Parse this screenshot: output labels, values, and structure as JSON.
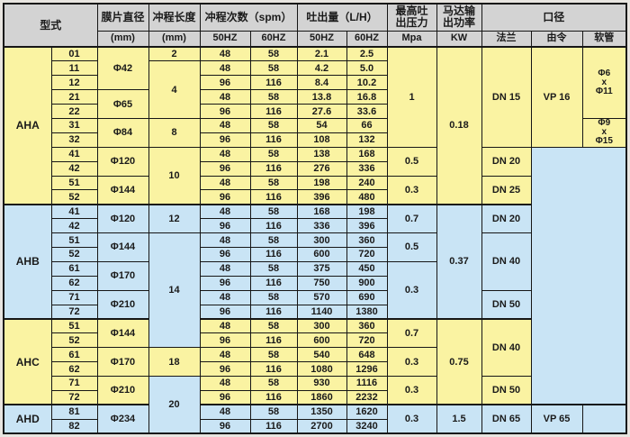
{
  "colors": {
    "yellow_row": "#FAF3A2",
    "blue_row": "#C9E4F5",
    "header_bg": "#D3D3D3",
    "border": "#161616",
    "page_bg": "#E8E5E0"
  },
  "table": {
    "header": {
      "model": "型式",
      "diaphragm": "膜片直径",
      "diaphragm_unit": "(mm)",
      "stroke": "冲程长度",
      "stroke_unit": "(mm)",
      "spm": "冲程次数（spm）",
      "spm_hz50": "50HZ",
      "spm_hz60": "60HZ",
      "flow": "吐出量（L/H）",
      "flow_hz50": "50HZ",
      "flow_hz60": "60HZ",
      "pressure": "最高吐\n出压力",
      "pressure_unit": "Mpa",
      "power": "马达输\n出功率",
      "power_unit": "KW",
      "caliber": "口径",
      "flange": "法兰",
      "union": "由令",
      "hose": "软管"
    },
    "section_start_rows": [
      11,
      19,
      25
    ],
    "rows": [
      {
        "c": "y",
        "cells": [
          {
            "t": "AHA",
            "n": "m",
            "rs": 11
          },
          {
            "t": "01",
            "n": "u"
          },
          {
            "t": "Φ42",
            "n": "d",
            "rs": 3
          },
          {
            "t": "2",
            "n": "s"
          },
          {
            "t": "48",
            "n": "f5"
          },
          {
            "t": "58",
            "n": "f6"
          },
          {
            "t": "2.1",
            "n": "q5"
          },
          {
            "t": "2.5",
            "n": "q6"
          },
          {
            "t": "1",
            "n": "p",
            "rs": 7
          },
          {
            "t": "0.18",
            "n": "k",
            "rs": 11
          },
          {
            "t": "DN 15",
            "n": "fl",
            "rs": 7
          },
          {
            "t": "VP 16",
            "n": "un",
            "rs": 7
          },
          {
            "t": "Φ6\nx\nΦ11",
            "n": "h",
            "rs": 5
          }
        ]
      },
      {
        "c": "y",
        "cells": [
          {
            "t": "11",
            "n": "u"
          },
          {
            "t": "4",
            "n": "s",
            "rs": 4
          },
          {
            "t": "48",
            "n": "f5"
          },
          {
            "t": "58",
            "n": "f6"
          },
          {
            "t": "4.2",
            "n": "q5"
          },
          {
            "t": "5.0",
            "n": "q6"
          }
        ]
      },
      {
        "c": "y",
        "cells": [
          {
            "t": "12",
            "n": "u"
          },
          {
            "t": "96",
            "n": "f5"
          },
          {
            "t": "116",
            "n": "f6"
          },
          {
            "t": "8.4",
            "n": "q5"
          },
          {
            "t": "10.2",
            "n": "q6"
          }
        ]
      },
      {
        "c": "y",
        "cells": [
          {
            "t": "21",
            "n": "u"
          },
          {
            "t": "Φ65",
            "n": "d",
            "rs": 2
          },
          {
            "t": "48",
            "n": "f5"
          },
          {
            "t": "58",
            "n": "f6"
          },
          {
            "t": "13.8",
            "n": "q5"
          },
          {
            "t": "16.8",
            "n": "q6"
          }
        ]
      },
      {
        "c": "y",
        "cells": [
          {
            "t": "22",
            "n": "u"
          },
          {
            "t": "96",
            "n": "f5"
          },
          {
            "t": "116",
            "n": "f6"
          },
          {
            "t": "27.6",
            "n": "q5"
          },
          {
            "t": "33.6",
            "n": "q6"
          }
        ]
      },
      {
        "c": "y",
        "cells": [
          {
            "t": "31",
            "n": "u"
          },
          {
            "t": "Φ84",
            "n": "d",
            "rs": 2
          },
          {
            "t": "8",
            "n": "s",
            "rs": 2
          },
          {
            "t": "48",
            "n": "f5"
          },
          {
            "t": "58",
            "n": "f6"
          },
          {
            "t": "54",
            "n": "q5"
          },
          {
            "t": "66",
            "n": "q6"
          },
          {
            "t": "Φ9\nx\nΦ15",
            "n": "h",
            "rs": 2
          }
        ]
      },
      {
        "c": "y",
        "cells": [
          {
            "t": "32",
            "n": "u"
          },
          {
            "t": "96",
            "n": "f5"
          },
          {
            "t": "116",
            "n": "f6"
          },
          {
            "t": "108",
            "n": "q5"
          },
          {
            "t": "132",
            "n": "q6"
          }
        ]
      },
      {
        "c": "y",
        "cells": [
          {
            "t": "41",
            "n": "u"
          },
          {
            "t": "Φ120",
            "n": "d",
            "rs": 2
          },
          {
            "t": "10",
            "n": "s",
            "rs": 4
          },
          {
            "t": "48",
            "n": "f5"
          },
          {
            "t": "58",
            "n": "f6"
          },
          {
            "t": "138",
            "n": "q5"
          },
          {
            "t": "168",
            "n": "q6"
          },
          {
            "t": "0.5",
            "n": "p",
            "rs": 2
          },
          {
            "t": "DN 20",
            "n": "fl",
            "rs": 2
          },
          {
            "t": "",
            "n": "bg",
            "rs": 18,
            "cs": 2,
            "c": "b"
          }
        ]
      },
      {
        "c": "y",
        "cells": [
          {
            "t": "42",
            "n": "u"
          },
          {
            "t": "96",
            "n": "f5"
          },
          {
            "t": "116",
            "n": "f6"
          },
          {
            "t": "276",
            "n": "q5"
          },
          {
            "t": "336",
            "n": "q6"
          }
        ]
      },
      {
        "c": "y",
        "cells": [
          {
            "t": "51",
            "n": "u"
          },
          {
            "t": "Φ144",
            "n": "d",
            "rs": 2
          },
          {
            "t": "48",
            "n": "f5"
          },
          {
            "t": "58",
            "n": "f6"
          },
          {
            "t": "198",
            "n": "q5"
          },
          {
            "t": "240",
            "n": "q6"
          },
          {
            "t": "0.3",
            "n": "p",
            "rs": 2
          },
          {
            "t": "DN 25",
            "n": "fl",
            "rs": 2
          }
        ]
      },
      {
        "c": "y",
        "cells": [
          {
            "t": "52",
            "n": "u"
          },
          {
            "t": "96",
            "n": "f5"
          },
          {
            "t": "116",
            "n": "f6"
          },
          {
            "t": "396",
            "n": "q5"
          },
          {
            "t": "480",
            "n": "q6"
          }
        ]
      },
      {
        "c": "b",
        "cells": [
          {
            "t": "AHB",
            "n": "m",
            "rs": 8
          },
          {
            "t": "41",
            "n": "u"
          },
          {
            "t": "Φ120",
            "n": "d",
            "rs": 2
          },
          {
            "t": "12",
            "n": "s",
            "rs": 2
          },
          {
            "t": "48",
            "n": "f5"
          },
          {
            "t": "58",
            "n": "f6"
          },
          {
            "t": "168",
            "n": "q5"
          },
          {
            "t": "198",
            "n": "q6"
          },
          {
            "t": "0.7",
            "n": "p",
            "rs": 2
          },
          {
            "t": "0.37",
            "n": "k",
            "rs": 8
          },
          {
            "t": "DN 20",
            "n": "fl",
            "rs": 2
          }
        ]
      },
      {
        "c": "b",
        "cells": [
          {
            "t": "42",
            "n": "u"
          },
          {
            "t": "96",
            "n": "f5"
          },
          {
            "t": "116",
            "n": "f6"
          },
          {
            "t": "336",
            "n": "q5"
          },
          {
            "t": "396",
            "n": "q6"
          }
        ]
      },
      {
        "c": "b",
        "cells": [
          {
            "t": "51",
            "n": "u"
          },
          {
            "t": "Φ144",
            "n": "d",
            "rs": 2
          },
          {
            "t": "14",
            "n": "s",
            "rs": 8
          },
          {
            "t": "48",
            "n": "f5"
          },
          {
            "t": "58",
            "n": "f6"
          },
          {
            "t": "300",
            "n": "q5"
          },
          {
            "t": "360",
            "n": "q6"
          },
          {
            "t": "0.5",
            "n": "p",
            "rs": 2
          },
          {
            "t": "DN 40",
            "n": "fl",
            "rs": 4
          }
        ]
      },
      {
        "c": "b",
        "cells": [
          {
            "t": "52",
            "n": "u"
          },
          {
            "t": "96",
            "n": "f5"
          },
          {
            "t": "116",
            "n": "f6"
          },
          {
            "t": "600",
            "n": "q5"
          },
          {
            "t": "720",
            "n": "q6"
          }
        ]
      },
      {
        "c": "b",
        "cells": [
          {
            "t": "61",
            "n": "u"
          },
          {
            "t": "Φ170",
            "n": "d",
            "rs": 2
          },
          {
            "t": "48",
            "n": "f5"
          },
          {
            "t": "58",
            "n": "f6"
          },
          {
            "t": "375",
            "n": "q5"
          },
          {
            "t": "450",
            "n": "q6"
          },
          {
            "t": "0.3",
            "n": "p",
            "rs": 4
          }
        ]
      },
      {
        "c": "b",
        "cells": [
          {
            "t": "62",
            "n": "u"
          },
          {
            "t": "96",
            "n": "f5"
          },
          {
            "t": "116",
            "n": "f6"
          },
          {
            "t": "750",
            "n": "q5"
          },
          {
            "t": "900",
            "n": "q6"
          }
        ]
      },
      {
        "c": "b",
        "cells": [
          {
            "t": "71",
            "n": "u"
          },
          {
            "t": "Φ210",
            "n": "d",
            "rs": 2
          },
          {
            "t": "48",
            "n": "f5"
          },
          {
            "t": "58",
            "n": "f6"
          },
          {
            "t": "570",
            "n": "q5"
          },
          {
            "t": "690",
            "n": "q6"
          },
          {
            "t": "DN 50",
            "n": "fl",
            "rs": 2
          }
        ]
      },
      {
        "c": "b",
        "cells": [
          {
            "t": "72",
            "n": "u"
          },
          {
            "t": "96",
            "n": "f5"
          },
          {
            "t": "116",
            "n": "f6"
          },
          {
            "t": "1140",
            "n": "q5"
          },
          {
            "t": "1380",
            "n": "q6"
          }
        ]
      },
      {
        "c": "y",
        "cells": [
          {
            "t": "AHC",
            "n": "m",
            "rs": 6
          },
          {
            "t": "51",
            "n": "u"
          },
          {
            "t": "Φ144",
            "n": "d",
            "rs": 2
          },
          {
            "t": "48",
            "n": "f5"
          },
          {
            "t": "58",
            "n": "f6"
          },
          {
            "t": "300",
            "n": "q5"
          },
          {
            "t": "360",
            "n": "q6"
          },
          {
            "t": "0.7",
            "n": "p",
            "rs": 2
          },
          {
            "t": "0.75",
            "n": "k",
            "rs": 6
          },
          {
            "t": "DN 40",
            "n": "fl",
            "rs": 4
          }
        ]
      },
      {
        "c": "y",
        "cells": [
          {
            "t": "52",
            "n": "u"
          },
          {
            "t": "96",
            "n": "f5"
          },
          {
            "t": "116",
            "n": "f6"
          },
          {
            "t": "600",
            "n": "q5"
          },
          {
            "t": "720",
            "n": "q6"
          }
        ]
      },
      {
        "c": "y",
        "cells": [
          {
            "t": "61",
            "n": "u"
          },
          {
            "t": "Φ170",
            "n": "d",
            "rs": 2
          },
          {
            "t": "18",
            "n": "s",
            "rs": 2
          },
          {
            "t": "48",
            "n": "f5"
          },
          {
            "t": "58",
            "n": "f6"
          },
          {
            "t": "540",
            "n": "q5"
          },
          {
            "t": "648",
            "n": "q6"
          },
          {
            "t": "0.3",
            "n": "p",
            "rs": 2
          }
        ]
      },
      {
        "c": "y",
        "cells": [
          {
            "t": "62",
            "n": "u"
          },
          {
            "t": "96",
            "n": "f5"
          },
          {
            "t": "116",
            "n": "f6"
          },
          {
            "t": "1080",
            "n": "q5"
          },
          {
            "t": "1296",
            "n": "q6"
          }
        ]
      },
      {
        "c": "y",
        "cells": [
          {
            "t": "71",
            "n": "u"
          },
          {
            "t": "Φ210",
            "n": "d",
            "rs": 2
          },
          {
            "t": "20",
            "n": "s",
            "rs": 4,
            "c": "b"
          },
          {
            "t": "48",
            "n": "f5"
          },
          {
            "t": "58",
            "n": "f6"
          },
          {
            "t": "930",
            "n": "q5"
          },
          {
            "t": "1116",
            "n": "q6"
          },
          {
            "t": "0.3",
            "n": "p",
            "rs": 2
          },
          {
            "t": "DN 50",
            "n": "fl",
            "rs": 2
          }
        ]
      },
      {
        "c": "y",
        "cells": [
          {
            "t": "72",
            "n": "u"
          },
          {
            "t": "96",
            "n": "f5"
          },
          {
            "t": "116",
            "n": "f6"
          },
          {
            "t": "1860",
            "n": "q5"
          },
          {
            "t": "2232",
            "n": "q6"
          }
        ]
      },
      {
        "c": "b",
        "cells": [
          {
            "t": "AHD",
            "n": "m",
            "rs": 2
          },
          {
            "t": "81",
            "n": "u"
          },
          {
            "t": "Φ234",
            "n": "d",
            "rs": 2
          },
          {
            "t": "48",
            "n": "f5"
          },
          {
            "t": "58",
            "n": "f6"
          },
          {
            "t": "1350",
            "n": "q5"
          },
          {
            "t": "1620",
            "n": "q6"
          },
          {
            "t": "0.3",
            "n": "p",
            "rs": 2
          },
          {
            "t": "1.5",
            "n": "k",
            "rs": 2
          },
          {
            "t": "DN 65",
            "n": "fl",
            "rs": 2
          },
          {
            "t": "VP 65",
            "n": "un",
            "rs": 2
          },
          {
            "t": "",
            "n": "h",
            "rs": 2
          }
        ]
      },
      {
        "c": "b",
        "cells": [
          {
            "t": "82",
            "n": "u"
          },
          {
            "t": "96",
            "n": "f5"
          },
          {
            "t": "116",
            "n": "f6"
          },
          {
            "t": "2700",
            "n": "q5"
          },
          {
            "t": "3240",
            "n": "q6"
          }
        ]
      }
    ]
  }
}
